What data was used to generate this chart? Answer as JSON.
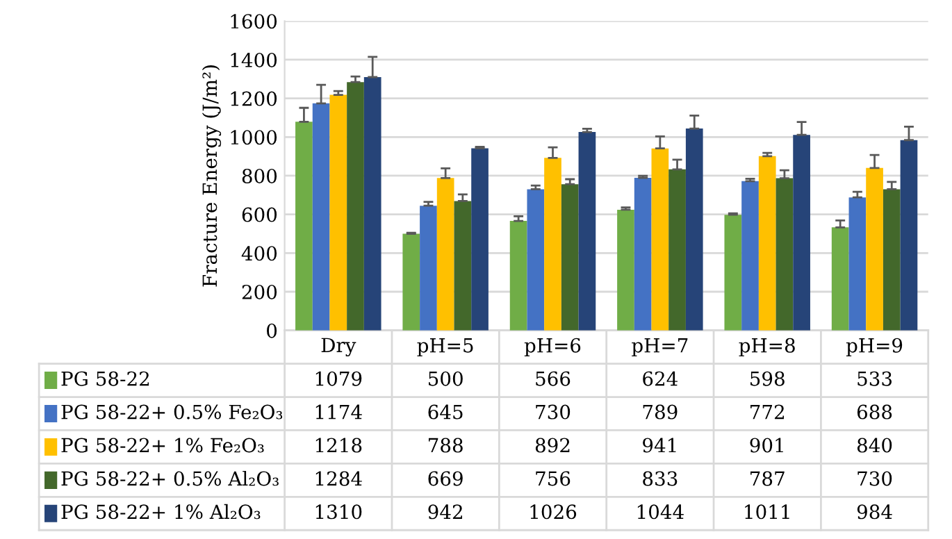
{
  "chart_data": {
    "type": "bar",
    "ylabel": "Fracture Energy (J/m²)",
    "categories": [
      "Dry",
      "pH=5",
      "pH=6",
      "pH=7",
      "pH=8",
      "pH=9"
    ],
    "series": [
      {
        "name": "PG 58-22",
        "color": "#70ad47",
        "values": [
          1079,
          500,
          566,
          624,
          598,
          533
        ],
        "errors": [
          72,
          5,
          24,
          12,
          7,
          36
        ]
      },
      {
        "name": "PG 58-22+ 0.5% Fe₂O₃",
        "color": "#4472c4",
        "values": [
          1174,
          645,
          730,
          789,
          772,
          688
        ],
        "errors": [
          96,
          20,
          19,
          10,
          12,
          29
        ]
      },
      {
        "name": "PG 58-22+ 1% Fe₂O₃",
        "color": "#ffc000",
        "values": [
          1218,
          788,
          892,
          941,
          901,
          840
        ],
        "errors": [
          20,
          50,
          55,
          62,
          17,
          67
        ]
      },
      {
        "name": "PG 58-22+ 0.5% Al₂O₃",
        "color": "#43682b",
        "values": [
          1284,
          669,
          756,
          833,
          787,
          730
        ],
        "errors": [
          29,
          34,
          26,
          50,
          41,
          38
        ]
      },
      {
        "name": "PG 58-22+ 1% Al₂O₃",
        "color": "#264478",
        "values": [
          1310,
          942,
          1026,
          1044,
          1011,
          984
        ],
        "errors": [
          105,
          7,
          17,
          67,
          67,
          70
        ]
      }
    ],
    "ylim": [
      0,
      1600
    ],
    "yticks": [
      0,
      200,
      400,
      600,
      800,
      1000,
      1200,
      1400,
      1600
    ],
    "grid": "y",
    "legend": "bottom",
    "data_labels": true
  }
}
